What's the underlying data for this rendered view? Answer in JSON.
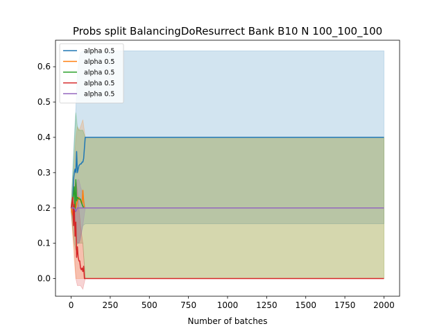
{
  "chart_data": {
    "type": "line",
    "title": "Probs split BalancingDoResurrect Bank B10 N 100_100_100",
    "xlabel": "Number of batches",
    "ylabel": "",
    "xlim": [
      -100,
      2100
    ],
    "ylim": [
      -0.05,
      0.675
    ],
    "x_ticks": [
      0,
      250,
      500,
      750,
      1000,
      1250,
      1500,
      1750,
      2000
    ],
    "y_ticks": [
      0.0,
      0.1,
      0.2,
      0.3,
      0.4,
      0.5,
      0.6
    ],
    "x_tick_labels": [
      "0",
      "250",
      "500",
      "750",
      "1000",
      "1250",
      "1500",
      "1750",
      "2000"
    ],
    "y_tick_labels": [
      "0.0",
      "0.1",
      "0.2",
      "0.3",
      "0.4",
      "0.5",
      "0.6"
    ],
    "grid": false,
    "legend_position": "top-left",
    "series": [
      {
        "name": "alpha 0.5",
        "color": "#1f77b4",
        "x": [
          0,
          10,
          15,
          20,
          25,
          30,
          35,
          40,
          50,
          60,
          65,
          70,
          75,
          80,
          85,
          90,
          2000
        ],
        "y": [
          0.2,
          0.22,
          0.28,
          0.3,
          0.31,
          0.3,
          0.36,
          0.3,
          0.32,
          0.325,
          0.325,
          0.33,
          0.33,
          0.34,
          0.37,
          0.4,
          0.4
        ],
        "band_x": [
          0,
          20,
          30,
          40,
          50,
          60,
          75,
          90,
          2000
        ],
        "band_lower": [
          0.19,
          0.15,
          0.12,
          0.1,
          0.1,
          0.12,
          0.15,
          0.155,
          0.155
        ],
        "band_upper": [
          0.21,
          0.4,
          0.48,
          0.58,
          0.62,
          0.64,
          0.645,
          0.645,
          0.645
        ]
      },
      {
        "name": "alpha 0.5",
        "color": "#ff7f0e",
        "x": [
          0,
          10,
          20,
          25,
          30,
          40,
          50,
          60,
          70,
          75,
          80,
          85,
          90,
          2000
        ],
        "y": [
          0.2,
          0.18,
          0.21,
          0.23,
          0.2,
          0.22,
          0.23,
          0.22,
          0.21,
          0.25,
          0.22,
          0.2,
          0.2,
          0.2
        ],
        "band_x": [
          0,
          20,
          30,
          40,
          50,
          60,
          75,
          90,
          2000
        ],
        "band_lower": [
          0.19,
          0.05,
          0.0,
          0.0,
          0.0,
          0.0,
          0.0,
          0.0,
          0.0
        ],
        "band_upper": [
          0.21,
          0.32,
          0.4,
          0.43,
          0.42,
          0.43,
          0.45,
          0.4,
          0.4
        ]
      },
      {
        "name": "alpha 0.5",
        "color": "#2ca02c",
        "x": [
          0,
          10,
          20,
          25,
          30,
          35,
          40,
          50,
          60,
          70,
          80,
          90,
          2000
        ],
        "y": [
          0.2,
          0.22,
          0.26,
          0.19,
          0.28,
          0.22,
          0.23,
          0.225,
          0.225,
          0.21,
          0.2,
          0.2,
          0.2
        ],
        "band_x": [
          0,
          20,
          30,
          40,
          50,
          60,
          75,
          90,
          2000
        ],
        "band_lower": [
          0.19,
          0.1,
          0.08,
          0.1,
          0.1,
          0.1,
          0.1,
          0.0,
          0.0
        ],
        "band_upper": [
          0.21,
          0.38,
          0.47,
          0.43,
          0.42,
          0.42,
          0.42,
          0.4,
          0.4
        ]
      },
      {
        "name": "alpha 0.5",
        "color": "#d62728",
        "x": [
          0,
          10,
          15,
          20,
          25,
          30,
          35,
          40,
          45,
          50,
          55,
          60,
          65,
          70,
          75,
          80,
          85,
          90,
          2000
        ],
        "y": [
          0.2,
          0.23,
          0.15,
          0.21,
          0.12,
          0.16,
          0.06,
          0.09,
          0.06,
          0.05,
          0.05,
          0.03,
          0.025,
          0.03,
          0.02,
          0.035,
          0.0,
          0.0,
          0.0
        ],
        "band_x": [
          0,
          20,
          30,
          40,
          50,
          60,
          75,
          90,
          2000
        ],
        "band_lower": [
          0.19,
          0.08,
          0.0,
          -0.02,
          -0.02,
          -0.02,
          -0.03,
          0.0,
          0.0
        ],
        "band_upper": [
          0.21,
          0.25,
          0.28,
          0.25,
          0.2,
          0.15,
          0.1,
          0.0,
          0.0
        ]
      },
      {
        "name": "alpha 0.5",
        "color": "#9467bd",
        "x": [
          0,
          10,
          20,
          30,
          40,
          50,
          60,
          70,
          80,
          90,
          2000
        ],
        "y": [
          0.2,
          0.2,
          0.2,
          0.19,
          0.2,
          0.2,
          0.2,
          0.2,
          0.2,
          0.2,
          0.2
        ],
        "band_x": [
          0,
          20,
          30,
          40,
          50,
          60,
          75,
          90,
          2000
        ],
        "band_lower": [
          0.195,
          0.18,
          0.12,
          0.1,
          0.1,
          0.11,
          0.15,
          0.2,
          0.2
        ],
        "band_upper": [
          0.205,
          0.22,
          0.25,
          0.28,
          0.28,
          0.26,
          0.24,
          0.2,
          0.2
        ]
      }
    ]
  }
}
